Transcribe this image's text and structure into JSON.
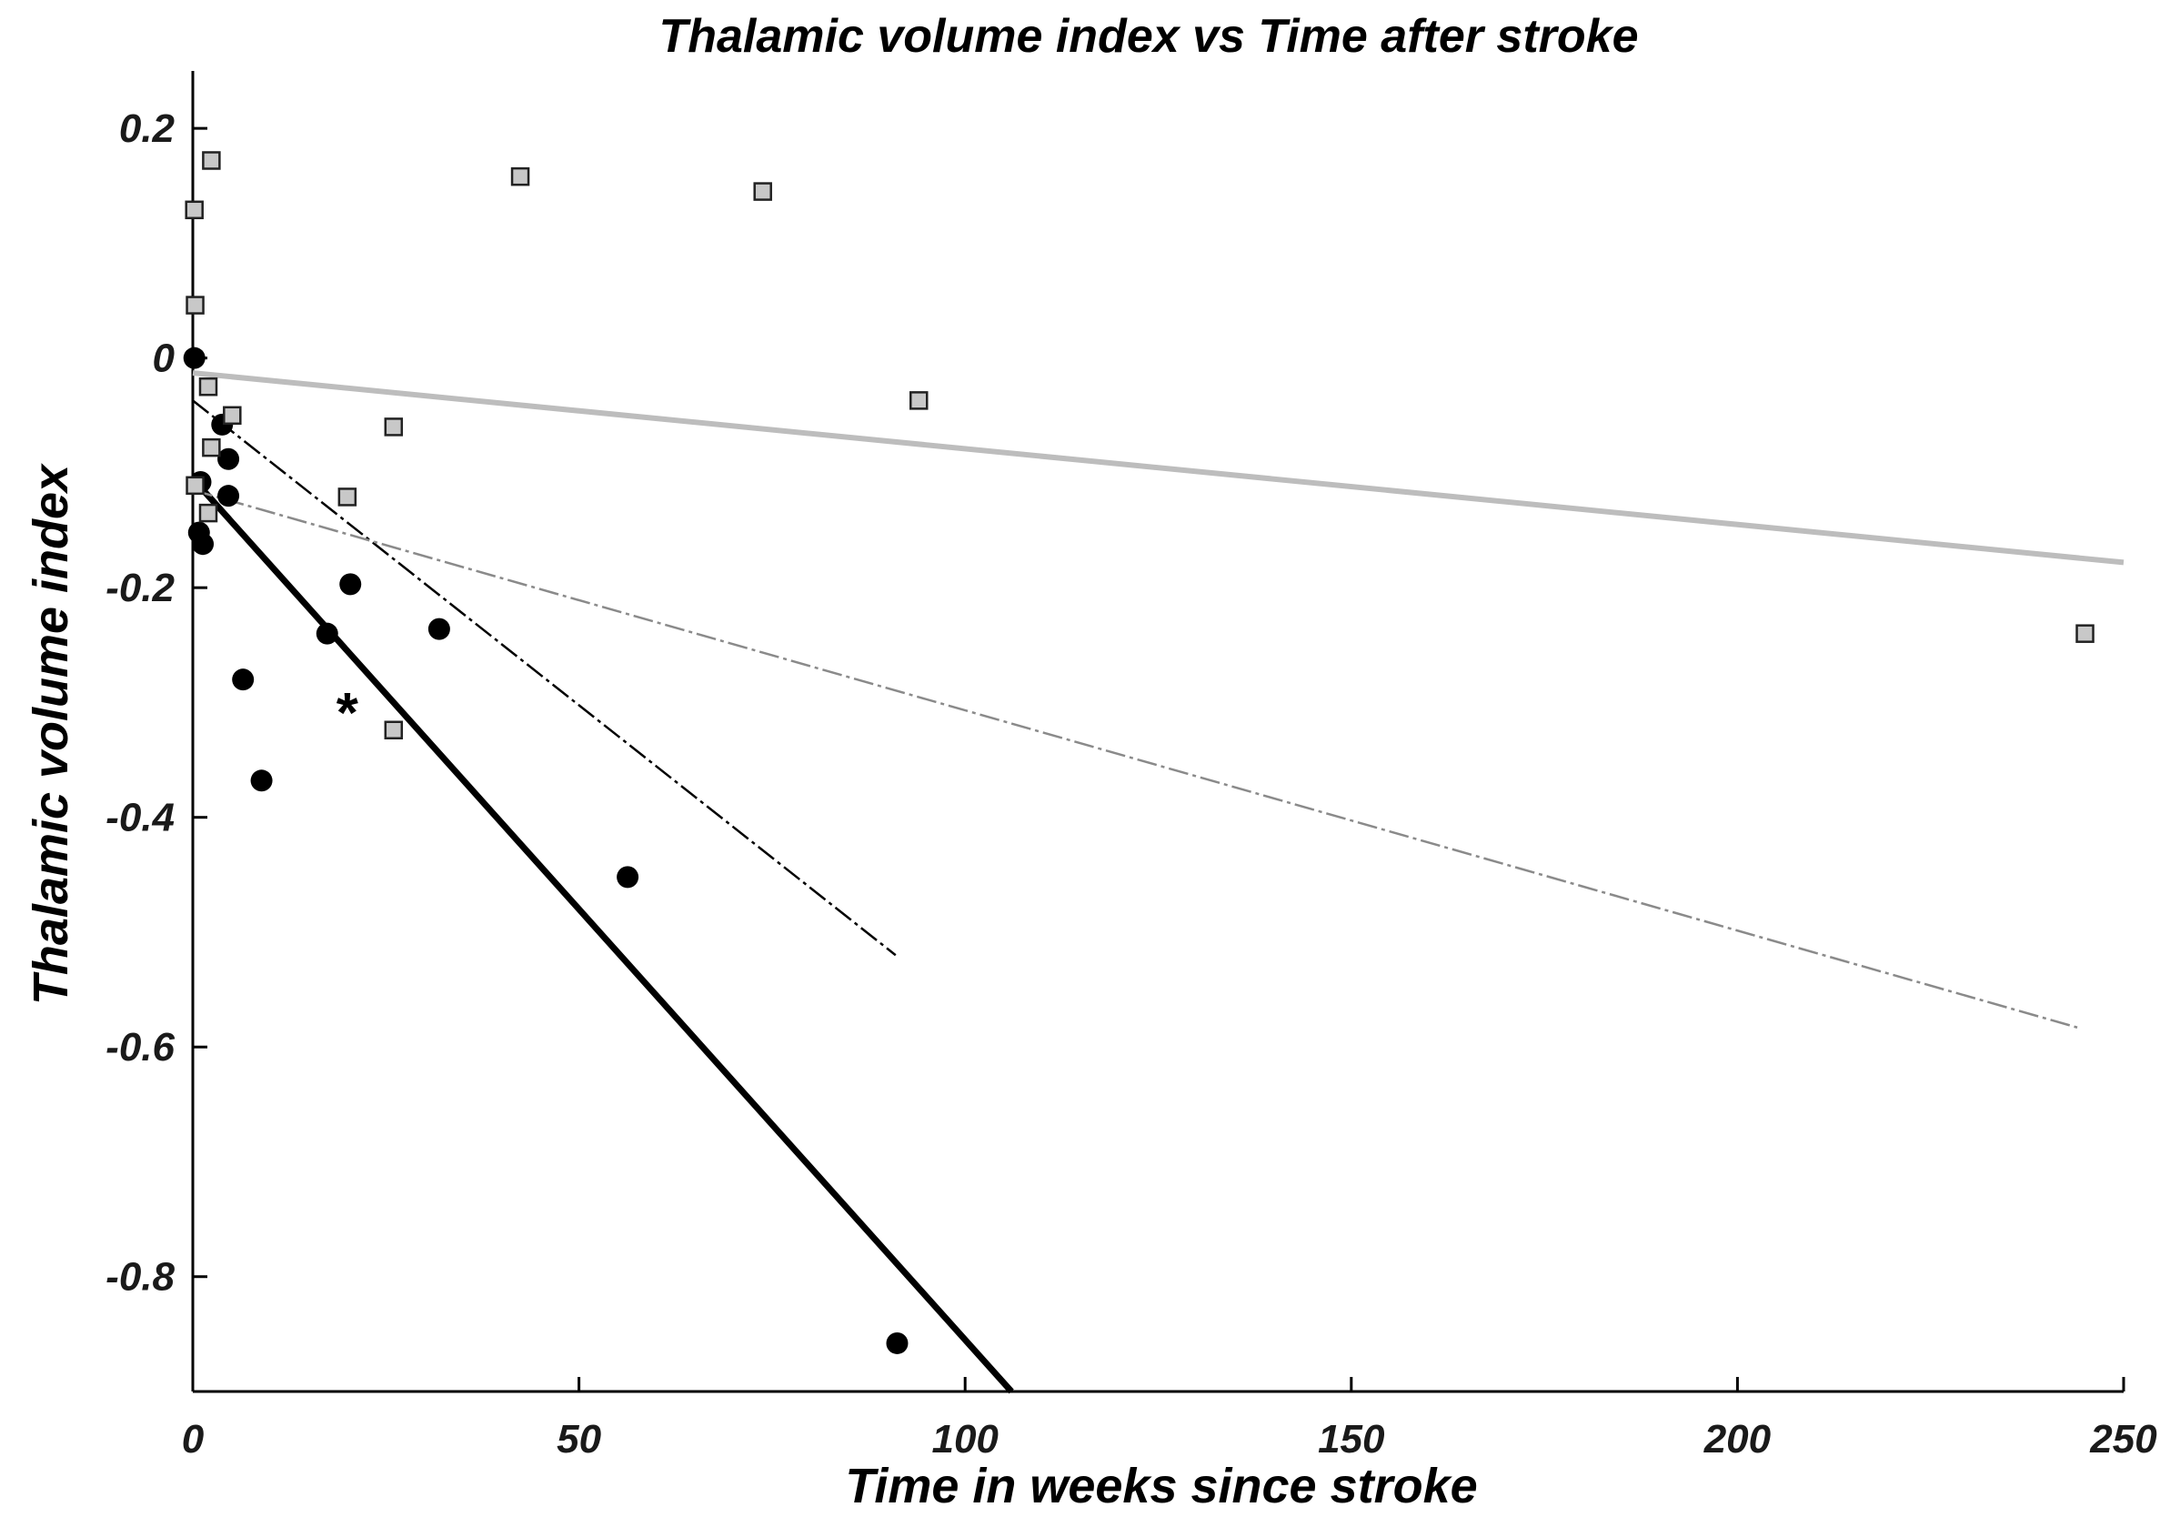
{
  "chart_data": {
    "type": "scatter",
    "title": "Thalamic volume index vs Time after stroke",
    "xlabel": "Time in weeks since stroke",
    "ylabel": "Thalamic volume index",
    "xlim": [
      0,
      250
    ],
    "ylim": [
      -0.9,
      0.25
    ],
    "xticks": [
      0,
      50,
      100,
      150,
      200,
      250
    ],
    "xtick_labels": [
      "0",
      "50",
      "100",
      "150",
      "200",
      "250"
    ],
    "yticks": [
      0.2,
      0,
      -0.2,
      -0.4,
      -0.6,
      -0.8
    ],
    "ytick_labels": [
      "0.2",
      "0",
      "-0.2",
      "-0.4",
      "-0.6",
      "-0.8"
    ],
    "grid": false,
    "legend": "none",
    "annotations": [
      {
        "text": "*",
        "x": 20,
        "y": -0.31
      }
    ],
    "series": [
      {
        "marker": "circle",
        "color": "#000000",
        "points": [
          [
            0.2,
            0.0
          ],
          [
            1.0,
            -0.108
          ],
          [
            0.8,
            -0.152
          ],
          [
            1.3,
            -0.162
          ],
          [
            3.8,
            -0.058
          ],
          [
            4.6,
            -0.088
          ],
          [
            4.6,
            -0.12
          ],
          [
            6.5,
            -0.28
          ],
          [
            8.9,
            -0.368
          ],
          [
            17.4,
            -0.24
          ],
          [
            20.4,
            -0.197
          ],
          [
            31.9,
            -0.236
          ],
          [
            56.3,
            -0.452
          ],
          [
            91.2,
            -0.858
          ]
        ]
      },
      {
        "marker": "square",
        "color": "#c8c8c8",
        "points": [
          [
            0.2,
            0.129
          ],
          [
            2.4,
            0.172
          ],
          [
            0.3,
            0.046
          ],
          [
            0.3,
            -0.111
          ],
          [
            2.0,
            -0.025
          ],
          [
            2.4,
            -0.078
          ],
          [
            5.1,
            -0.05
          ],
          [
            2.0,
            -0.135
          ],
          [
            20.0,
            -0.121
          ],
          [
            26.0,
            -0.06
          ],
          [
            42.4,
            0.158
          ],
          [
            73.8,
            0.145
          ],
          [
            94.0,
            -0.037
          ],
          [
            26.0,
            -0.324
          ],
          [
            245.0,
            -0.24
          ]
        ]
      }
    ],
    "fit_lines": [
      {
        "style": "solid-thick",
        "color": "#000000",
        "x": [
          0,
          106
        ],
        "y": [
          -0.105,
          -0.9
        ]
      },
      {
        "style": "dash-dot",
        "color": "#000000",
        "x": [
          0,
          91
        ],
        "y": [
          -0.037,
          -0.52
        ]
      },
      {
        "style": "solid-thick",
        "color": "#bdbdbd",
        "x": [
          0,
          250
        ],
        "y": [
          -0.013,
          -0.178
        ]
      },
      {
        "style": "dash-dot",
        "color": "#8a8a8a",
        "x": [
          0,
          244
        ],
        "y": [
          -0.115,
          -0.583
        ]
      }
    ]
  }
}
